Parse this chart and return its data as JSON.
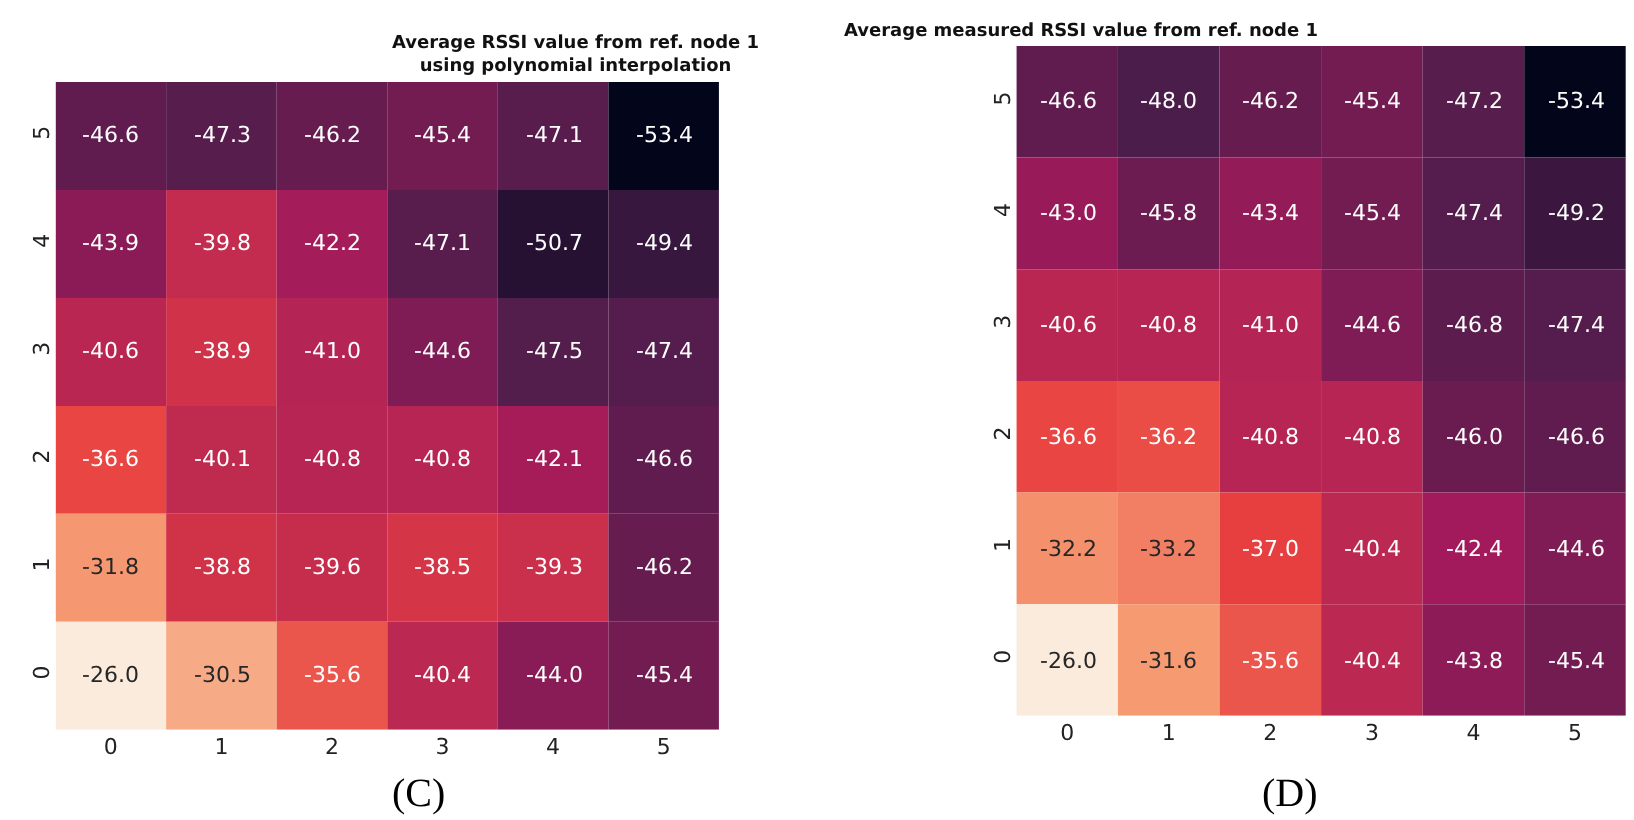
{
  "chart_data": [
    {
      "type": "heatmap",
      "title": "Average RSSI value from ref. node 1\nusing polynomial interpolation",
      "categories": [
        "0",
        "1",
        "2",
        "3",
        "4",
        "5"
      ],
      "y_categories": [
        "5",
        "4",
        "3",
        "2",
        "1",
        "0"
      ],
      "cells": [
        [
          -46.6,
          -47.3,
          -46.2,
          -45.4,
          -47.1,
          -53.4
        ],
        [
          -43.9,
          -39.8,
          -42.2,
          -47.1,
          -50.7,
          -49.4
        ],
        [
          -40.6,
          -38.9,
          -41.0,
          -44.6,
          -47.5,
          -47.4
        ],
        [
          -36.6,
          -40.1,
          -40.8,
          -40.8,
          -42.1,
          -46.6
        ],
        [
          -31.8,
          -38.8,
          -39.6,
          -38.5,
          -39.3,
          -46.2
        ],
        [
          -26.0,
          -30.5,
          -35.6,
          -40.4,
          -44.0,
          -45.4
        ]
      ],
      "cell_labels": [
        [
          "-46.6",
          "-47.3",
          "-46.2",
          "-45.4",
          "-47.1",
          "-53.4"
        ],
        [
          "-43.9",
          "-39.8",
          "-42.2",
          "-47.1",
          "-50.7",
          "-49.4"
        ],
        [
          "-40.6",
          "-38.9",
          "-41.0",
          "-44.6",
          "-47.5",
          "-47.4"
        ],
        [
          "-36.6",
          "-40.1",
          "-40.8",
          "-40.8",
          "-42.1",
          "-46.6"
        ],
        [
          "-31.8",
          "-38.8",
          "-39.6",
          "-38.5",
          "-39.3",
          "-46.2"
        ],
        [
          "-26.0",
          "-30.5",
          "-35.6",
          "-40.4",
          "-44.0",
          "-45.4"
        ]
      ],
      "annotations": [
        "(C)"
      ]
    },
    {
      "type": "heatmap",
      "title": "Average measured RSSI value from ref. node 1",
      "categories": [
        "0",
        "1",
        "2",
        "3",
        "4",
        "5"
      ],
      "y_categories": [
        "5",
        "4",
        "3",
        "2",
        "1",
        "0"
      ],
      "cells": [
        [
          -46.6,
          -48.0,
          -46.2,
          -45.4,
          -47.2,
          -53.4
        ],
        [
          -43.0,
          -45.8,
          -43.4,
          -45.4,
          -47.4,
          -49.2
        ],
        [
          -40.6,
          -40.8,
          -41.0,
          -44.6,
          -46.8,
          -47.4
        ],
        [
          -36.6,
          -36.2,
          -40.8,
          -40.8,
          -46.0,
          -46.6
        ],
        [
          -32.2,
          -33.2,
          -37.0,
          -40.4,
          -42.4,
          -44.6
        ],
        [
          -26.0,
          -31.6,
          -35.6,
          -40.4,
          -43.8,
          -45.4
        ]
      ],
      "cell_labels": [
        [
          "-46.6",
          "-48.0",
          "-46.2",
          "-45.4",
          "-47.2",
          "-53.4"
        ],
        [
          "-43.0",
          "-45.8",
          "-43.4",
          "-45.4",
          "-47.4",
          "-49.2"
        ],
        [
          "-40.6",
          "-40.8",
          "-41.0",
          "-44.6",
          "-46.8",
          "-47.4"
        ],
        [
          "-36.6",
          "-36.2",
          "-40.8",
          "-40.8",
          "-46.0",
          "-46.6"
        ],
        [
          "-32.2",
          "-33.2",
          "-37.0",
          "-40.4",
          "-42.4",
          "-44.6"
        ],
        [
          "-26.0",
          "-31.6",
          "-35.6",
          "-40.4",
          "-43.8",
          "-45.4"
        ]
      ],
      "annotations": [
        "(D)"
      ]
    }
  ]
}
